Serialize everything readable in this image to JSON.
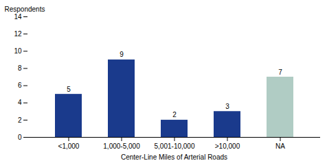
{
  "chart_data": {
    "type": "bar",
    "categories": [
      "<1,000",
      "1,000-5,000",
      "5,001-10,000",
      ">10,000",
      "NA"
    ],
    "values": [
      5,
      9,
      2,
      3,
      7
    ],
    "colors": [
      "#1a3a8c",
      "#1a3a8c",
      "#1a3a8c",
      "#1a3a8c",
      "#b0ccc4"
    ],
    "ylabel": "Respondents",
    "xlabel": "Center-Line Miles of Arterial Roads",
    "ylim": [
      0,
      14
    ],
    "yticks": [
      0,
      2,
      4,
      6,
      8,
      10,
      12,
      14
    ],
    "grid": false,
    "data_labels": true
  }
}
